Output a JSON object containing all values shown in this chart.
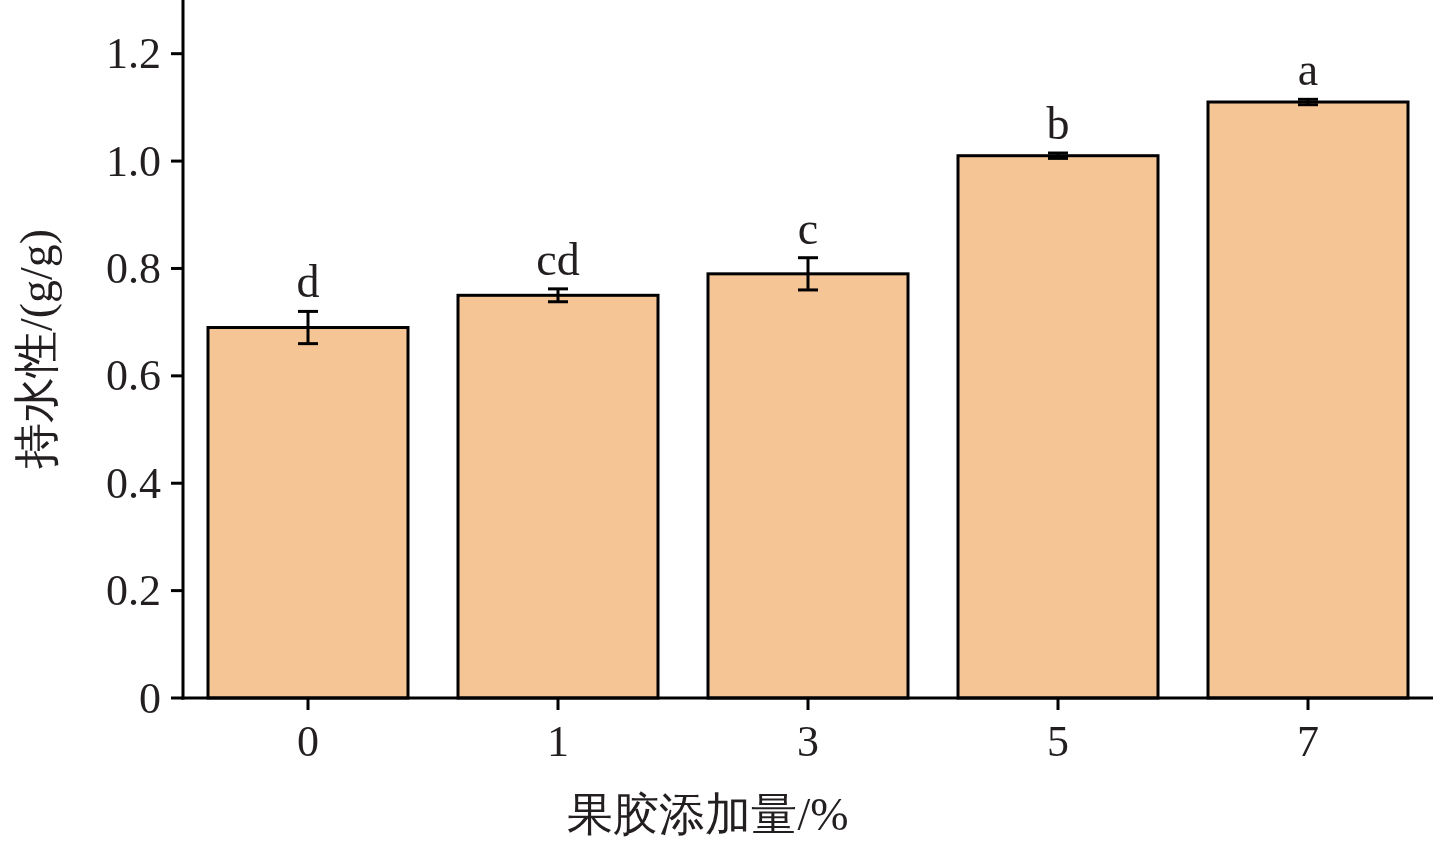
{
  "chart_data": {
    "type": "bar",
    "xlabel": "果胶添加量/%",
    "ylabel": "持水性/(g/g)",
    "categories": [
      "0",
      "1",
      "3",
      "5",
      "7"
    ],
    "values": [
      0.69,
      0.75,
      0.79,
      1.01,
      1.11
    ],
    "errors": [
      0.03,
      0.012,
      0.03,
      0.005,
      0.005
    ],
    "color": "#f5c596",
    "ylim": [
      0,
      1.3
    ],
    "yticks": [
      0,
      0.2,
      0.4,
      0.6,
      {
        "value": 1,
        "label": "1.0"
      },
      0.8,
      1.2
    ],
    "grid": false,
    "annotations": [
      "d",
      "cd",
      "c",
      "b",
      "a"
    ]
  }
}
